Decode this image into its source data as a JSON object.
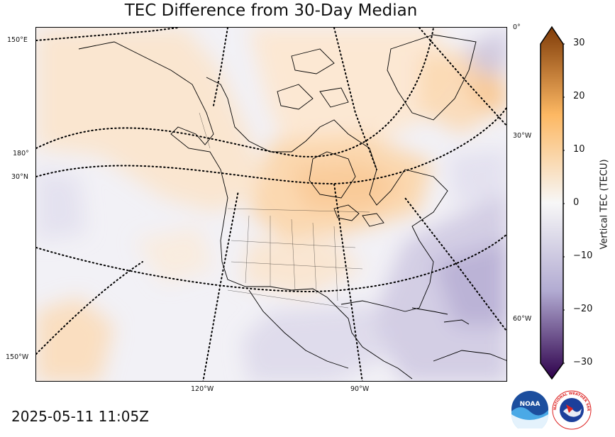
{
  "title": "TEC Difference from 30-Day Median",
  "timestamp": "2025-05-11 11:05Z",
  "map": {
    "projection": "polar-stereographic",
    "region": "North America",
    "field": "TEC difference from 30-day median",
    "station_color": "#ff0000",
    "coastline_color": "#000000",
    "graticule_style": "dotted",
    "grid_labels": {
      "left": [
        "150°E",
        "180°",
        "30°N",
        "150°W"
      ],
      "right": [
        "0°",
        "30°W",
        "60°W"
      ],
      "bottom": [
        "120°W",
        "90°W"
      ]
    }
  },
  "colorbar": {
    "label": "Vertical TEC (TECU)",
    "min": -30,
    "max": 30,
    "ticks": [
      "30",
      "20",
      "10",
      "0",
      "−10",
      "−20",
      "−30"
    ],
    "colors": {
      "max": "#7f3b08",
      "positive_mid": "#fdb863",
      "zero": "#f7f7f7",
      "negative_mid": "#b2abd2",
      "min": "#2d004b"
    },
    "extend": "both"
  },
  "logos": {
    "noaa": "NOAA",
    "nws": "NATIONAL WEATHER SERVICE"
  }
}
